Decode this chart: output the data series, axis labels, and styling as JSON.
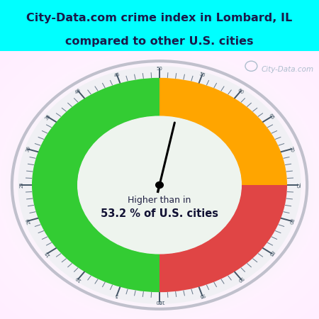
{
  "title_line1": "City-Data.com crime index in Lombard, IL",
  "title_line2": "compared to other U.S. cities",
  "title_bg_color": "#00FFFF",
  "title_color": "#1a1a4a",
  "needle_value": 53.2,
  "green_color": "#33CC33",
  "orange_color": "#FFA500",
  "red_color": "#E04545",
  "label_text1": "Higher than in",
  "label_text2": "53.2 % of U.S. cities",
  "watermark": "City-Data.com",
  "figsize": [
    4.5,
    4.5
  ],
  "dpi": 100
}
